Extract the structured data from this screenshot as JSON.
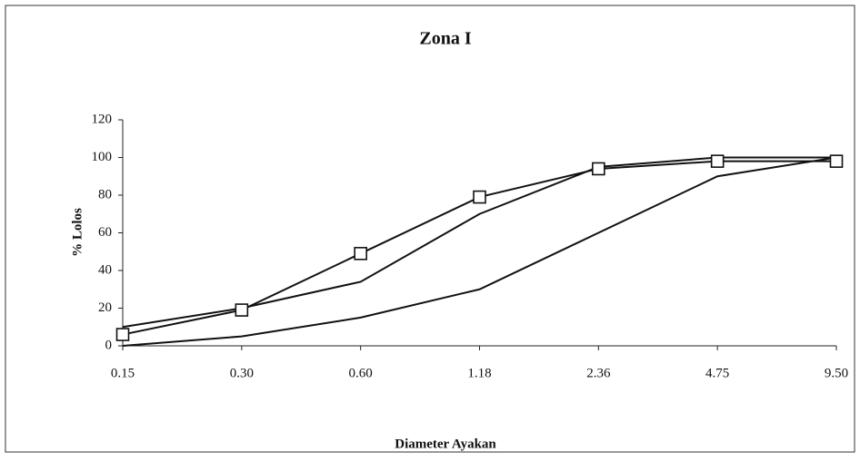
{
  "chart_data": {
    "type": "line",
    "title": "Zona I",
    "x_label": "Diameter Ayakan",
    "y_label": "% Lolos",
    "categories": [
      "0.15",
      "0.30",
      "0.60",
      "1.18",
      "2.36",
      "4.75",
      "9.50"
    ],
    "series": [
      {
        "color": "#111111",
        "values": [
          10,
          20,
          34,
          70,
          95,
          100,
          100
        ]
      },
      {
        "color": "#111111",
        "values": [
          0,
          5,
          15,
          30,
          60,
          90,
          100
        ]
      },
      {
        "color": "#111111",
        "marker": "square",
        "values": [
          6,
          19,
          49,
          79,
          94,
          98,
          98
        ]
      }
    ],
    "ylim": [
      0,
      120
    ],
    "yticks": [
      0,
      20,
      40,
      60,
      80,
      100,
      120
    ],
    "grid": false
  }
}
